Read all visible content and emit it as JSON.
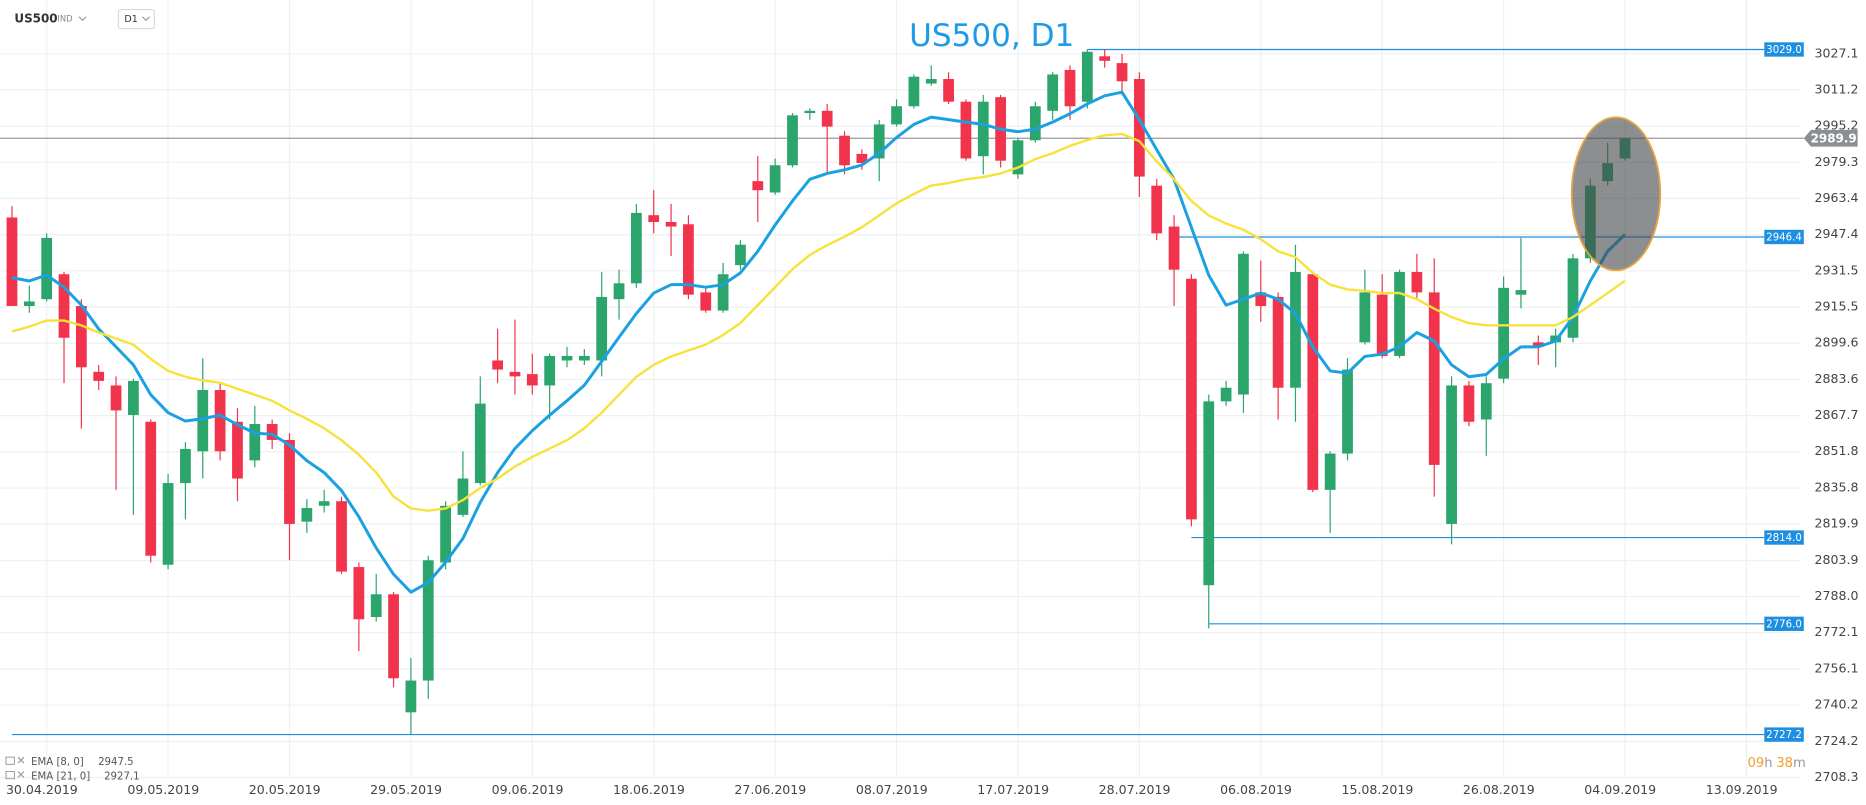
{
  "chart_data": {
    "type": "candlestick",
    "title": "US500, D1",
    "symbol": "US500",
    "symbol_type": "IND",
    "timeframe": "D1",
    "grid": true,
    "up_color": "#2ba56c",
    "down_color": "#f2334c",
    "candles": {
      "open": [
        2955,
        2916,
        2919,
        2930,
        2916,
        2887,
        2881,
        2868,
        2865,
        2802,
        2838,
        2852,
        2879,
        2865,
        2848,
        2864,
        2857,
        2821,
        2828,
        2830,
        2801,
        2779,
        2789,
        2737,
        2751,
        2803,
        2824,
        2838,
        2892,
        2887,
        2886,
        2881,
        2892,
        2892,
        2892,
        2919,
        2926,
        2956,
        2953,
        2952,
        2922,
        2914,
        2934,
        2971,
        2966,
        2978,
        3001,
        3002,
        2991,
        2983,
        2981,
        2996,
        3004,
        3014,
        3016,
        3006,
        2982,
        3008,
        2974,
        2989,
        3002,
        3020,
        3006,
        3026,
        3023,
        3016,
        2969,
        2951,
        2928,
        2793,
        2874,
        2877,
        2922,
        2920,
        2880,
        2930,
        2835,
        2851,
        2900,
        2921,
        2894,
        2931,
        2922,
        2820,
        2881,
        2866,
        2884,
        2921,
        2900,
        2900,
        2902,
        2937,
        2971,
        2981
      ],
      "high": [
        2960,
        2925,
        2948,
        2931,
        2919,
        2890,
        2885,
        2884,
        2866,
        2842,
        2856,
        2893,
        2882,
        2871,
        2872,
        2866,
        2860,
        2831,
        2835,
        2832,
        2803,
        2798,
        2790,
        2761,
        2806,
        2830,
        2852,
        2885,
        2906,
        2910,
        2895,
        2895,
        2898,
        2897,
        2931,
        2932,
        2961,
        2967,
        2961,
        2956,
        2924,
        2935,
        2945,
        2982,
        2981,
        3001,
        3003,
        3005,
        2993,
        2985,
        2998,
        3007,
        3018,
        3022,
        3019,
        3007,
        3009,
        3009,
        2990,
        3006,
        3019,
        3022,
        3029,
        3029,
        3027,
        3019,
        2972,
        2956,
        2930,
        2877,
        2883,
        2940,
        2936,
        2922,
        2943,
        2931,
        2852,
        2893,
        2932,
        2930,
        2932,
        2939,
        2937,
        2885,
        2883,
        2885,
        2929,
        2946,
        2903,
        2906,
        2939,
        2972,
        2988,
        2990
      ],
      "low": [
        2916,
        2913,
        2918,
        2882,
        2862,
        2879,
        2835,
        2824,
        2803,
        2800,
        2822,
        2840,
        2848,
        2830,
        2845,
        2853,
        2804,
        2816,
        2825,
        2798,
        2764,
        2777,
        2748,
        2727,
        2743,
        2800,
        2823,
        2837,
        2882,
        2877,
        2877,
        2866,
        2889,
        2890,
        2885,
        2910,
        2924,
        2948,
        2938,
        2919,
        2913,
        2913,
        2932,
        2953,
        2965,
        2977,
        2998,
        2974,
        2974,
        2976,
        2971,
        2995,
        3003,
        3013,
        3005,
        2980,
        2974,
        2977,
        2972,
        2988,
        2998,
        2998,
        3003,
        3021,
        3009,
        2964,
        2945,
        2916,
        2819,
        2774,
        2872,
        2869,
        2909,
        2866,
        2865,
        2834,
        2816,
        2848,
        2899,
        2893,
        2893,
        2919,
        2832,
        2811,
        2863,
        2850,
        2882,
        2915,
        2890,
        2889,
        2900,
        2935,
        2969,
        2980
      ],
      "close": [
        2916,
        2918,
        2946,
        2902,
        2889,
        2883,
        2870,
        2883,
        2806,
        2838,
        2853,
        2879,
        2852,
        2840,
        2864,
        2857,
        2820,
        2827,
        2830,
        2799,
        2778,
        2789,
        2752,
        2751,
        2804,
        2828,
        2840,
        2873,
        2888,
        2885,
        2881,
        2894,
        2894,
        2894,
        2920,
        2926,
        2957,
        2953,
        2951,
        2921,
        2914,
        2930,
        2943,
        2967,
        2978,
        3000,
        3002,
        2995,
        2978,
        2979,
        2996,
        3004,
        3017,
        3016,
        3006,
        2981,
        3006,
        2980,
        2989,
        3004,
        3018,
        3004,
        3028,
        3024,
        3015,
        2973,
        2948,
        2932,
        2822,
        2874,
        2880,
        2939,
        2916,
        2880,
        2931,
        2835,
        2851,
        2888,
        2922,
        2894,
        2931,
        2922,
        2846,
        2881,
        2865,
        2882,
        2924,
        2923,
        2898,
        2903,
        2937,
        2969,
        2979,
        2989.9
      ]
    },
    "series": [
      {
        "name": "EMA [8, 0]",
        "color": "#1ba1e2",
        "values": [
          2928.5,
          2927,
          2929.6,
          2924.3,
          2916.4,
          2905.9,
          2898,
          2890.1,
          2876.9,
          2869,
          2865.3,
          2866.3,
          2867.9,
          2863.7,
          2860,
          2859.5,
          2854.8,
          2847.9,
          2842.6,
          2834.7,
          2823.1,
          2809.4,
          2797.8,
          2789.9,
          2794.2,
          2803.1,
          2813.6,
          2829.5,
          2842.6,
          2853.2,
          2861.1,
          2867.9,
          2874.3,
          2881.1,
          2891.6,
          2902.2,
          2912.7,
          2921.7,
          2925.4,
          2925.4,
          2924.3,
          2925.4,
          2930.6,
          2940.1,
          2951.7,
          2962.3,
          2971.8,
          2974.4,
          2976,
          2978.1,
          2983.3,
          2990.2,
          2996,
          2999.2,
          2998.1,
          2997,
          2996,
          2993.9,
          2992.8,
          2993.9,
          2997,
          3000.7,
          3005,
          3008.6,
          3010.2,
          2998.1,
          2984.9,
          2971.8,
          2950.7,
          2929.6,
          2916.4,
          2919,
          2921.7,
          2919,
          2912.7,
          2898,
          2887.4,
          2886.4,
          2893.8,
          2894.8,
          2898,
          2904.3,
          2900.6,
          2890.1,
          2884.8,
          2885.8,
          2892.7,
          2898,
          2898,
          2900.6,
          2911.1,
          2927,
          2940.1,
          2947.5
        ]
      },
      {
        "name": "EMA [21, 0]",
        "color": "#f7e23b",
        "values": [
          2904.8,
          2906.9,
          2909.6,
          2909.6,
          2907.5,
          2904.3,
          2901.7,
          2899,
          2892.7,
          2887.4,
          2884.8,
          2883.2,
          2882.2,
          2879.5,
          2876.9,
          2874.3,
          2870,
          2866.3,
          2862.1,
          2856.9,
          2850.5,
          2842.6,
          2832.1,
          2826.8,
          2825.8,
          2826.8,
          2830.5,
          2835.8,
          2840,
          2845.3,
          2849.5,
          2853.2,
          2856.9,
          2862.1,
          2869,
          2876.9,
          2884.8,
          2890.1,
          2893.8,
          2896.4,
          2899,
          2903.2,
          2908.5,
          2916.4,
          2924.3,
          2932.2,
          2938.5,
          2942.8,
          2946.5,
          2950.7,
          2955.9,
          2961.2,
          2965.4,
          2969.1,
          2970.2,
          2971.8,
          2972.8,
          2974.4,
          2977,
          2980.7,
          2983.3,
          2986.5,
          2989.1,
          2991.2,
          2991.8,
          2988.6,
          2979.7,
          2971.8,
          2962.3,
          2955.9,
          2952.3,
          2949.6,
          2945.4,
          2940.1,
          2937.5,
          2930.6,
          2925.4,
          2923.3,
          2922.7,
          2921.7,
          2921.7,
          2919,
          2914.8,
          2911.1,
          2908.5,
          2907.5,
          2907.5,
          2907.5,
          2907.5,
          2907.5,
          2911.1,
          2916.4,
          2921.7,
          2927.1
        ]
      }
    ],
    "levels": {
      "values": [
        3029,
        2946.4,
        2814,
        2776,
        2727.2
      ],
      "value_labels": [
        "3029.0",
        "2946.4",
        "2814.0",
        "2776.0",
        "2727.2"
      ],
      "starts": [
        62,
        67,
        68,
        69,
        0
      ],
      "color": "#1e8fe0"
    },
    "current_price": 2989.9,
    "timer": [
      "09",
      "h",
      "38",
      "m"
    ],
    "xlim": [
      -0.69,
      103.1
    ],
    "ylim": [
      2708.3,
      3050.8
    ],
    "xticks": [
      {
        "value": 2,
        "label": "30.04.2019"
      },
      {
        "value": 9,
        "label": "09.05.2019"
      },
      {
        "value": 16,
        "label": "20.05.2019"
      },
      {
        "value": 23,
        "label": "29.05.2019"
      },
      {
        "value": 30,
        "label": "09.06.2019"
      },
      {
        "value": 37,
        "label": "18.06.2019"
      },
      {
        "value": 44,
        "label": "27.06.2019"
      },
      {
        "value": 51,
        "label": "08.07.2019"
      },
      {
        "value": 58,
        "label": "17.07.2019"
      },
      {
        "value": 65,
        "label": "28.07.2019"
      },
      {
        "value": 72,
        "label": "06.08.2019"
      },
      {
        "value": 79,
        "label": "15.08.2019"
      },
      {
        "value": 86,
        "label": "26.08.2019"
      },
      {
        "value": 93,
        "label": "04.09.2019"
      },
      {
        "value": 100,
        "label": "13.09.2019"
      }
    ],
    "yticks": [
      3027.1,
      3011.2,
      2995.2,
      2979.3,
      2963.4,
      2947.4,
      2931.5,
      2915.5,
      2899.6,
      2883.6,
      2867.7,
      2851.8,
      2835.8,
      2819.9,
      2803.9,
      {
        "value": 2788,
        "label": "2788.0"
      },
      2772.1,
      2756.1,
      2740.2,
      2724.2,
      2708.3
    ]
  }
}
